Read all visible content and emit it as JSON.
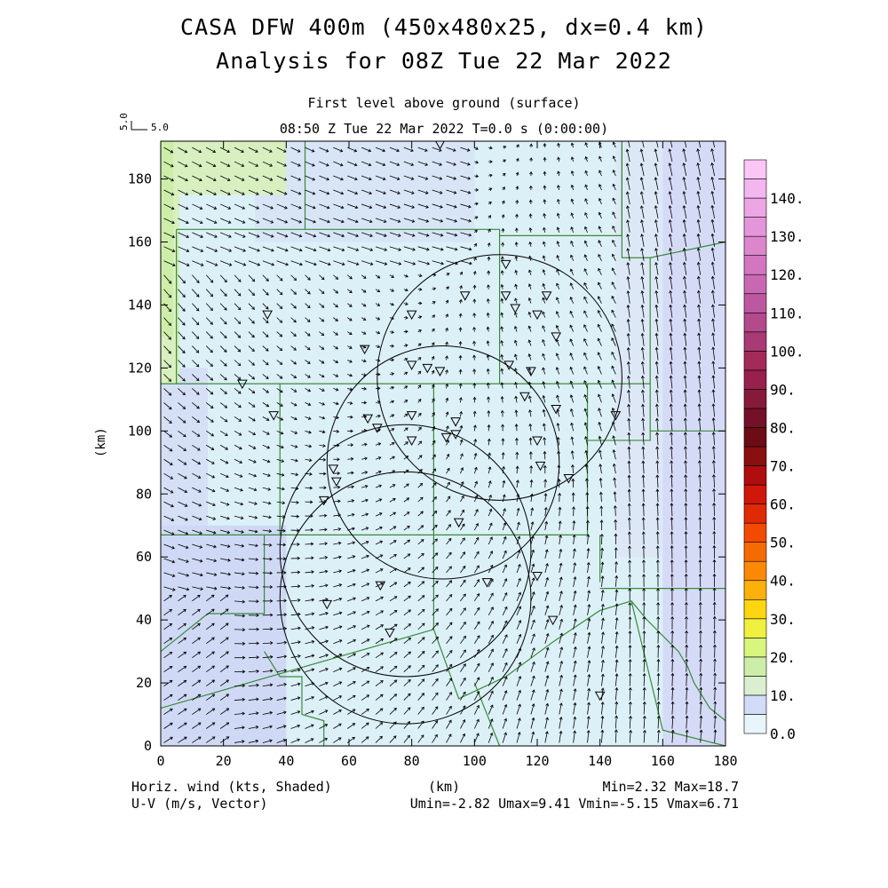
{
  "header": {
    "title_line1": "CASA DFW 400m (450x480x25, dx=0.4 km)",
    "title_line2": "Analysis for 08Z Tue 22 Mar 2022",
    "level": "First level above ground (surface)",
    "valid_time": "08:50 Z Tue 22 Mar 2022    T=0.0 s (0:00:00)",
    "vector_scale_label": "5.0",
    "vector_scale_label_rot": "5.0"
  },
  "footer": {
    "left_line1": "Horiz. wind (kts, Shaded)",
    "left_line2": "U-V (m/s, Vector)",
    "right_line1": "Min=2.32 Max=18.7",
    "right_line2": "Umin=-2.82 Umax=9.41 Vmin=-5.15 Vmax=6.71"
  },
  "chart_data": {
    "type": "heatmap",
    "description_fields": "wind speed shaded, wind vectors",
    "xlabel": "(km)",
    "ylabel": "(km)",
    "xlim": [
      0,
      180
    ],
    "ylim": [
      0,
      192
    ],
    "x_ticks": [
      0,
      20,
      40,
      60,
      80,
      100,
      120,
      140,
      160,
      180
    ],
    "y_ticks": [
      0,
      20,
      40,
      60,
      80,
      100,
      120,
      140,
      160,
      180
    ],
    "colorbar": {
      "levels": [
        0,
        5,
        10,
        15,
        20,
        25,
        30,
        35,
        40,
        45,
        50,
        55,
        60,
        65,
        70,
        75,
        80,
        85,
        90,
        95,
        100,
        105,
        110,
        115,
        120,
        125,
        130,
        135,
        140,
        145
      ],
      "tick_labels": [
        "0.0",
        "10.",
        "20.",
        "30.",
        "40.",
        "50.",
        "60.",
        "70.",
        "80.",
        "90.",
        "100.",
        "110.",
        "120.",
        "130.",
        "140."
      ],
      "colors": [
        "#e8f6fb",
        "#d2dcf8",
        "#dbeecf",
        "#cdeea8",
        "#d8f57e",
        "#f0f040",
        "#fcd610",
        "#fcb00a",
        "#fa8a05",
        "#f66a02",
        "#f24a00",
        "#e02a06",
        "#cf180a",
        "#b00e0e",
        "#881010",
        "#6c0c14",
        "#741028",
        "#861a3a",
        "#98204c",
        "#a42a5a",
        "#a83a76",
        "#b24a8c",
        "#bc58a0",
        "#c868b2",
        "#d276c0",
        "#dc86cc",
        "#e496da",
        "#eca6e4",
        "#f4b6ee",
        "#fac6f6"
      ]
    },
    "summary": {
      "speed_min_kts": 2.32,
      "speed_max_kts": 18.7,
      "u_min_ms": -2.82,
      "u_max_ms": 9.41,
      "v_min_ms": -5.15,
      "v_max_ms": 6.71
    },
    "radar_rings": [
      {
        "center": [
          78,
          47
        ],
        "radius": 40
      },
      {
        "center": [
          90,
          90
        ],
        "radius": 37
      },
      {
        "center": [
          78,
          62
        ],
        "radius": 40
      },
      {
        "center": [
          108,
          117
        ],
        "radius": 39
      }
    ],
    "stations": [
      [
        89,
        191
      ],
      [
        110,
        153
      ],
      [
        97,
        143
      ],
      [
        110,
        143
      ],
      [
        123,
        143
      ],
      [
        113,
        139
      ],
      [
        80,
        137
      ],
      [
        120,
        137
      ],
      [
        126,
        130
      ],
      [
        34,
        137
      ],
      [
        65,
        126
      ],
      [
        80,
        121
      ],
      [
        85,
        120
      ],
      [
        89,
        119
      ],
      [
        111,
        121
      ],
      [
        118,
        119
      ],
      [
        26,
        115
      ],
      [
        116,
        111
      ],
      [
        36,
        105
      ],
      [
        80,
        105
      ],
      [
        66,
        104
      ],
      [
        69,
        101
      ],
      [
        126,
        107
      ],
      [
        145,
        105
      ],
      [
        94,
        103
      ],
      [
        80,
        97
      ],
      [
        91,
        98
      ],
      [
        94,
        99
      ],
      [
        120,
        97
      ],
      [
        121,
        89
      ],
      [
        55,
        88
      ],
      [
        56,
        84
      ],
      [
        130,
        85
      ],
      [
        52,
        78
      ],
      [
        95,
        71
      ],
      [
        120,
        54
      ],
      [
        104,
        52
      ],
      [
        70,
        51
      ],
      [
        53,
        45
      ],
      [
        125,
        40
      ],
      [
        73,
        36
      ],
      [
        140,
        16
      ]
    ],
    "wind_field_note": "Easterly to south-easterly flow in the east, westerly to north-westerly in the west, cyclonic turning near the center"
  }
}
